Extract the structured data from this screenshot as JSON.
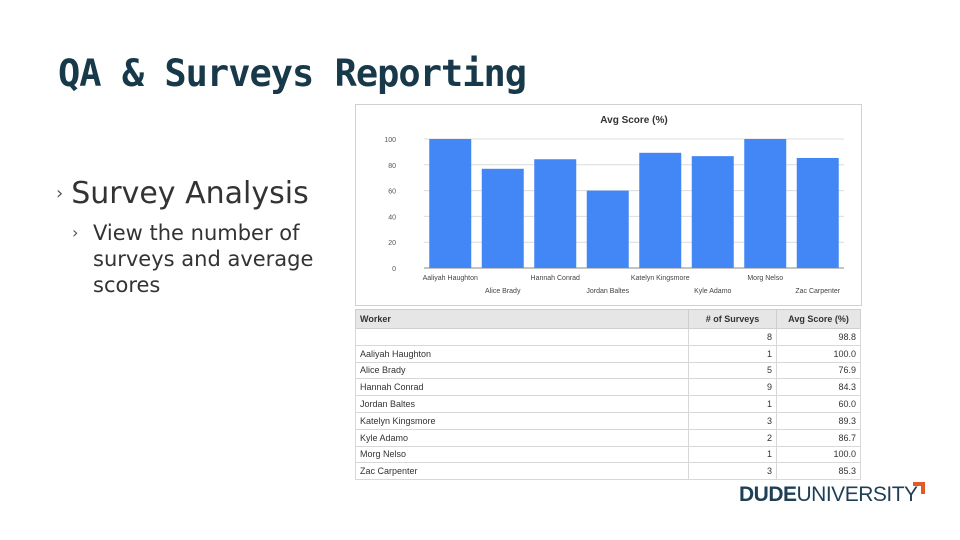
{
  "slide": {
    "title": "QA & Surveys Reporting",
    "bullet_level1": "Survey Analysis",
    "bullet_level2": "View the number of surveys and average scores",
    "bullet_marker": "›"
  },
  "chart_data": {
    "type": "bar",
    "title": "Avg Score (%)",
    "categories": [
      "Aaliyah Haughton",
      "Alice Brady",
      "Hannah Conrad",
      "Jordan Baltes",
      "Katelyn Kingsmore",
      "Kyle Adamo",
      "Morg Nelso",
      "Zac Carpenter"
    ],
    "values": [
      100.0,
      76.9,
      84.3,
      60.0,
      89.3,
      86.7,
      100.0,
      85.3
    ],
    "y_ticks": [
      "0",
      "20",
      "40",
      "60",
      "80",
      "100"
    ],
    "ylim": [
      0,
      100
    ],
    "grid": true,
    "bar_color": "#4287f5"
  },
  "table": {
    "headers": [
      "Worker",
      "# of Surveys",
      "Avg Score (%)"
    ],
    "rows": [
      [
        "",
        "8",
        "98.8"
      ],
      [
        "Aaliyah Haughton",
        "1",
        "100.0"
      ],
      [
        "Alice Brady",
        "5",
        "76.9"
      ],
      [
        "Hannah Conrad",
        "9",
        "84.3"
      ],
      [
        "Jordan Baltes",
        "1",
        "60.0"
      ],
      [
        "Katelyn Kingsmore",
        "3",
        "89.3"
      ],
      [
        "Kyle Adamo",
        "2",
        "86.7"
      ],
      [
        "Morg Nelso",
        "1",
        "100.0"
      ],
      [
        "Zac Carpenter",
        "3",
        "85.3"
      ]
    ]
  },
  "logo": {
    "part1": "DUDE",
    "part2": "UNIVERSITY",
    "brand_color": "#1f3f55",
    "accent_color": "#e05a2a"
  }
}
